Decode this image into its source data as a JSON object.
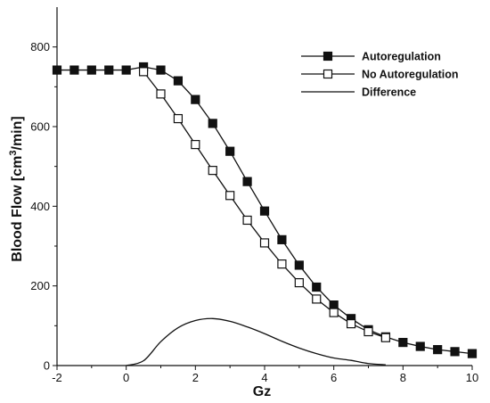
{
  "chart_data": {
    "type": "line",
    "xlabel": "Gz",
    "ylabel_main": "Blood Flow [cm",
    "ylabel_sup": "3",
    "ylabel_tail": "/min]",
    "xlim": [
      -2,
      10
    ],
    "ylim": [
      0,
      900
    ],
    "xticks": [
      -2,
      0,
      2,
      4,
      6,
      8,
      10
    ],
    "yticks": [
      0,
      200,
      400,
      600,
      800
    ],
    "grid": false,
    "legend_position": "top-right",
    "series": [
      {
        "name": "Autoregulation",
        "marker": "filled-square",
        "color": "#111111",
        "x": [
          -2,
          -1.5,
          -1,
          -0.5,
          0,
          0.5,
          1,
          1.5,
          2,
          2.5,
          3,
          3.5,
          4,
          4.5,
          5,
          5.5,
          6,
          6.5,
          7,
          7.5,
          8,
          8.5,
          9,
          9.5,
          10
        ],
        "y": [
          742,
          742,
          742,
          742,
          742,
          750,
          742,
          715,
          668,
          608,
          538,
          462,
          388,
          316,
          252,
          197,
          152,
          118,
          90,
          72,
          58,
          48,
          40,
          35,
          30
        ]
      },
      {
        "name": "No Autoregulation",
        "marker": "open-square",
        "color": "#111111",
        "x": [
          0.5,
          1,
          1.5,
          2,
          2.5,
          3,
          3.5,
          4,
          4.5,
          5,
          5.5,
          6,
          6.5,
          7,
          7.5
        ],
        "y": [
          738,
          682,
          620,
          555,
          490,
          427,
          365,
          308,
          255,
          208,
          167,
          133,
          105,
          85,
          70
        ]
      },
      {
        "name": "Difference",
        "marker": "none",
        "color": "#111111",
        "x": [
          0,
          0.5,
          1,
          1.5,
          2,
          2.5,
          3,
          3.5,
          4,
          4.5,
          5,
          5.5,
          6,
          6.5,
          7,
          7.5
        ],
        "y": [
          0,
          12,
          60,
          95,
          113,
          118,
          111,
          97,
          80,
          61,
          44,
          30,
          19,
          13,
          5,
          2
        ]
      }
    ]
  }
}
